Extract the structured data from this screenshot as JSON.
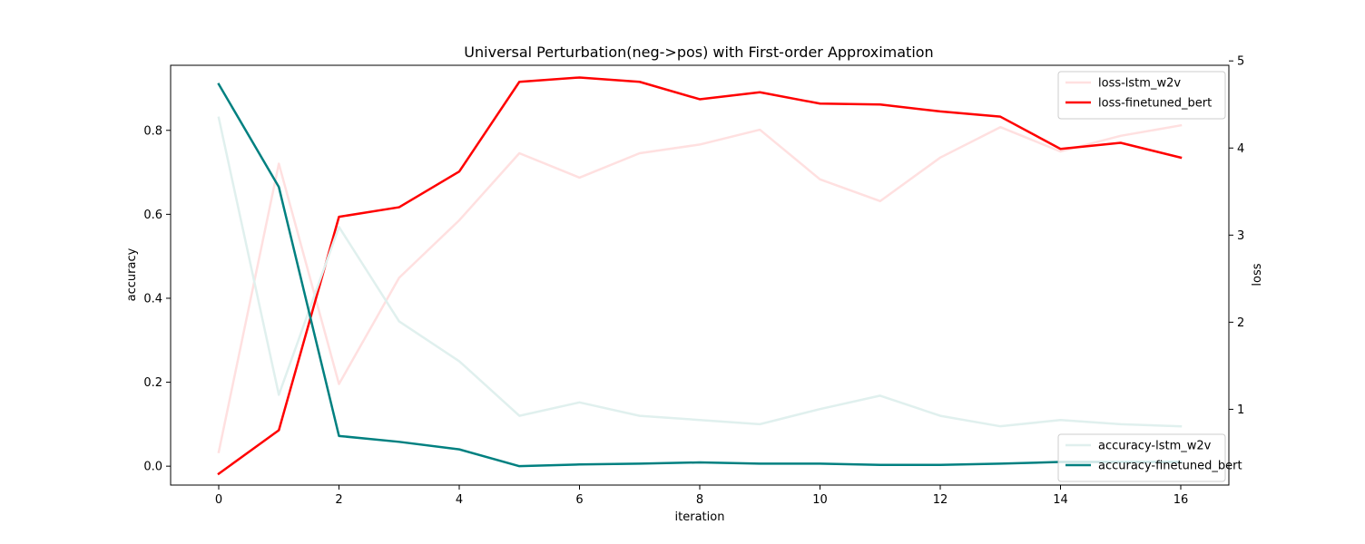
{
  "chart_data": {
    "type": "line",
    "title": "Universal Perturbation(neg->pos) with First-order Approximation",
    "xlabel": "iteration",
    "ylabel_left": "accuracy",
    "ylabel_right": "loss",
    "xlim": [
      -0.8,
      16.8
    ],
    "ylim_left": [
      -0.045,
      0.955
    ],
    "ylim_right": [
      0.13,
      4.95
    ],
    "x_ticks": [
      0,
      2,
      4,
      6,
      8,
      10,
      12,
      14,
      16
    ],
    "y_ticks_left": [
      0.0,
      0.2,
      0.4,
      0.6,
      0.8
    ],
    "y_ticks_right": [
      1,
      2,
      3,
      4,
      5
    ],
    "grid": false,
    "x": [
      0,
      1,
      2,
      3,
      4,
      5,
      6,
      7,
      8,
      9,
      10,
      11,
      12,
      13,
      14,
      15,
      16
    ],
    "series": [
      {
        "name": "loss-lstm_w2v",
        "axis": "right",
        "color": "#ffe0e0",
        "values": [
          0.51,
          3.82,
          1.29,
          2.51,
          3.17,
          3.94,
          3.66,
          3.94,
          4.04,
          4.21,
          3.64,
          3.39,
          3.89,
          4.24,
          3.96,
          4.14,
          4.26
        ]
      },
      {
        "name": "loss-finetuned_bert",
        "axis": "right",
        "color": "#ff0000",
        "values": [
          0.26,
          0.76,
          3.21,
          3.32,
          3.73,
          4.76,
          4.81,
          4.76,
          4.56,
          4.64,
          4.51,
          4.5,
          4.42,
          4.36,
          3.99,
          4.06,
          3.89
        ]
      },
      {
        "name": "accuracy-lstm_w2v",
        "axis": "left",
        "color": "#e0f0ee",
        "values": [
          0.83,
          0.17,
          0.57,
          0.345,
          0.25,
          0.12,
          0.152,
          0.12,
          0.11,
          0.1,
          0.136,
          0.168,
          0.12,
          0.095,
          0.11,
          0.1,
          0.095
        ]
      },
      {
        "name": "accuracy-finetuned_bert",
        "axis": "left",
        "color": "#008080",
        "values": [
          0.91,
          0.665,
          0.072,
          0.058,
          0.04,
          0.0,
          0.004,
          0.006,
          0.009,
          0.006,
          0.006,
          0.003,
          0.003,
          0.006,
          0.01,
          0.01,
          0.01
        ]
      }
    ],
    "legends": [
      {
        "position": "upper-right",
        "entries": [
          "loss-lstm_w2v",
          "loss-finetuned_bert"
        ]
      },
      {
        "position": "lower-right",
        "entries": [
          "accuracy-lstm_w2v",
          "accuracy-finetuned_bert"
        ]
      }
    ]
  }
}
